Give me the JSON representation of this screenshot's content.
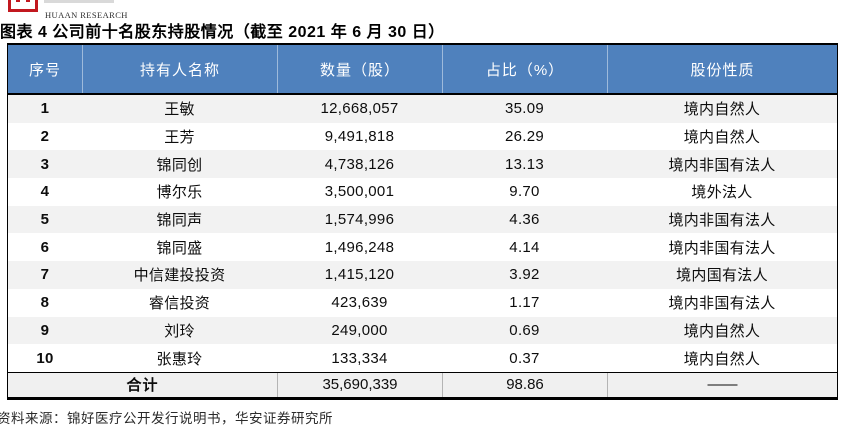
{
  "brand": {
    "logo_text": "HUAAN RESEARCH"
  },
  "title": "图表 4 公司前十名股东持股情况（截至 2021 年 6 月 30 日）",
  "table": {
    "headers": [
      "序号",
      "持有人名称",
      "数量（股）",
      "占比（%）",
      "股份性质"
    ],
    "rows": [
      [
        "1",
        "王敏",
        "12,668,057",
        "35.09",
        "境内自然人"
      ],
      [
        "2",
        "王芳",
        "9,491,818",
        "26.29",
        "境内自然人"
      ],
      [
        "3",
        "锦同创",
        "4,738,126",
        "13.13",
        "境内非国有法人"
      ],
      [
        "4",
        "博尔乐",
        "3,500,001",
        "9.70",
        "境外法人"
      ],
      [
        "5",
        "锦同声",
        "1,574,996",
        "4.36",
        "境内非国有法人"
      ],
      [
        "6",
        "锦同盛",
        "1,496,248",
        "4.14",
        "境内非国有法人"
      ],
      [
        "7",
        "中信建投投资",
        "1,415,120",
        "3.92",
        "境内国有法人"
      ],
      [
        "8",
        "睿信投资",
        "423,639",
        "1.17",
        "境内非国有法人"
      ],
      [
        "9",
        "刘玲",
        "249,000",
        "0.69",
        "境内自然人"
      ],
      [
        "10",
        "张惠玲",
        "133,334",
        "0.37",
        "境内自然人"
      ]
    ],
    "total": {
      "label": "合计",
      "quantity": "35,690,339",
      "percent": "98.86",
      "nature": "——"
    }
  },
  "footer": {
    "source": "资料来源：锦好医疗公开发行说明书，华安证券研究所"
  },
  "colors": {
    "header_bg": "#4f81bd",
    "row_alt_bg": "#f2f2f2",
    "logo_red": "#c2181f",
    "border_black": "#000000"
  }
}
